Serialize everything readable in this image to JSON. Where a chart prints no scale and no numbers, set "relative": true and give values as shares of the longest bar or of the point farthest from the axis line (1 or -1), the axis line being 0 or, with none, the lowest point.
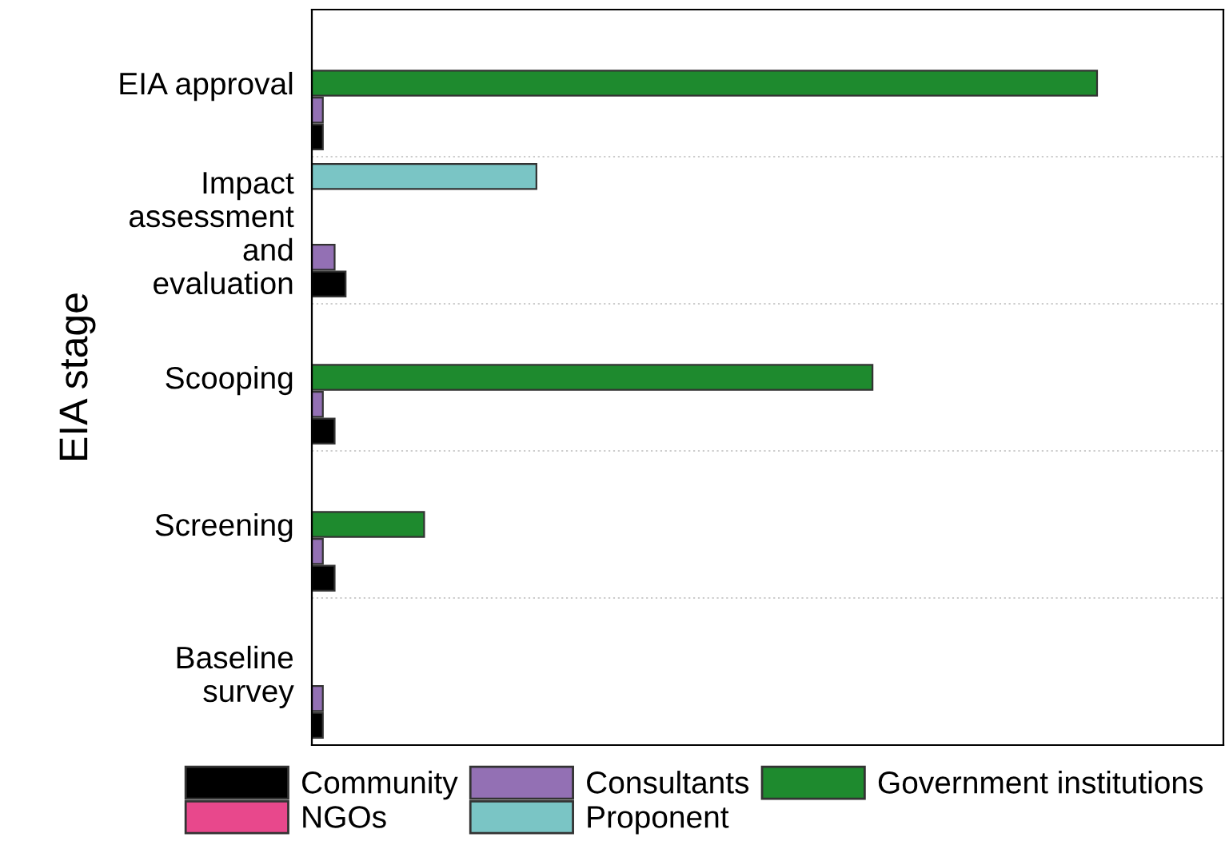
{
  "chart_data": {
    "type": "bar",
    "orientation": "horizontal",
    "relative": true,
    "ylabel": "EIA stage",
    "categories": [
      "EIA approval",
      "Impact\nassessment\nand\nevaluation",
      "Scooping",
      "Screening",
      "Baseline\nsurvey"
    ],
    "series": [
      {
        "name": "Community",
        "color": "#000000",
        "values": [
          0.014,
          0.043,
          0.029,
          0.029,
          0.014
        ]
      },
      {
        "name": "Consultants",
        "color": "#9370b4",
        "values": [
          0.014,
          0.029,
          0.014,
          0.014,
          0.014
        ]
      },
      {
        "name": "Government institutions",
        "color": "#1e8a2e",
        "values": [
          1.0,
          null,
          0.714,
          0.143,
          null
        ]
      },
      {
        "name": "NGOs",
        "color": "#e8488c",
        "values": [
          null,
          null,
          null,
          null,
          null
        ]
      },
      {
        "name": "Proponent",
        "color": "#7ac5c5",
        "values": [
          null,
          0.286,
          null,
          null,
          null
        ]
      }
    ],
    "grid": "y",
    "legend": "bottom"
  }
}
